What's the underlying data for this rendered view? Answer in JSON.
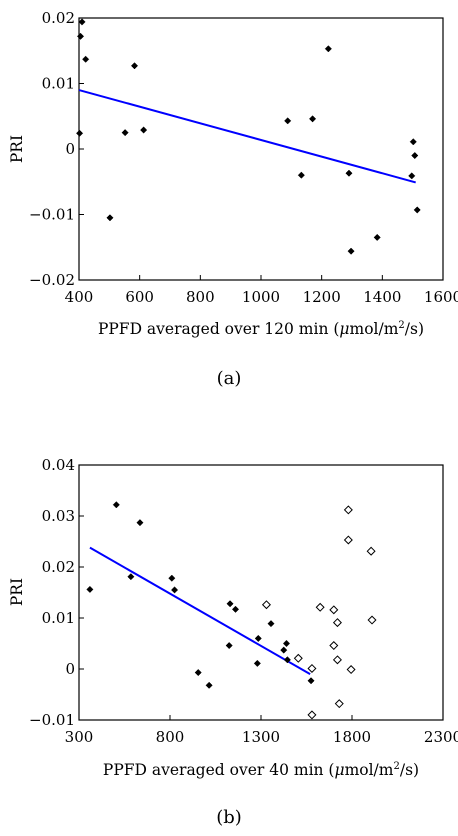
{
  "chart_data": [
    {
      "type": "scatter",
      "title": "",
      "caption": "(a)",
      "xlabel": "PPFD averaged over 120 min (μmol/m²/s)",
      "xlabel_parts": {
        "prefix": "PPFD averaged over 120 min (",
        "mu": "μ",
        "unit_mid": "mol/m",
        "sup": "2",
        "unit_end": "/s)"
      },
      "ylabel": "PRI",
      "xlim": [
        400,
        1600
      ],
      "ylim": [
        -0.02,
        0.02
      ],
      "xticks": [
        400,
        600,
        800,
        1000,
        1200,
        1400,
        1600
      ],
      "yticks": [
        -0.02,
        -0.01,
        0,
        0.01,
        0.02
      ],
      "xtick_labels": [
        "400",
        "600",
        "800",
        "1000",
        "1200",
        "1400",
        "1600"
      ],
      "ytick_labels": [
        "−0.02",
        "−0.01",
        "0",
        "0.01",
        "0.02"
      ],
      "grid": false,
      "series": [
        {
          "marker": "filled-diamond",
          "color": "#000000",
          "points": [
            [
              410,
              0.0194
            ],
            [
              405,
              0.0172
            ],
            [
              422,
              0.0137
            ],
            [
              402,
              0.0024
            ],
            [
              502,
              -0.0105
            ],
            [
              552,
              0.0025
            ],
            [
              583,
              0.0127
            ],
            [
              613,
              0.0029
            ],
            [
              1088,
              0.0043
            ],
            [
              1133,
              -0.004
            ],
            [
              1170,
              0.0046
            ],
            [
              1222,
              0.0153
            ],
            [
              1290,
              -0.0037
            ],
            [
              1297,
              -0.0156
            ],
            [
              1383,
              -0.0135
            ],
            [
              1497,
              -0.0041
            ],
            [
              1502,
              0.0011
            ],
            [
              1507,
              -0.001
            ],
            [
              1515,
              -0.0093
            ]
          ]
        }
      ],
      "fit_line": {
        "color": "#0000ff",
        "x": [
          400,
          1510
        ],
        "y": [
          0.009,
          -0.0051
        ]
      }
    },
    {
      "type": "scatter",
      "title": "",
      "caption": "(b)",
      "xlabel": "PPFD averaged over 40 min (μmol/m²/s)",
      "xlabel_parts": {
        "prefix": "PPFD averaged over 40 min (",
        "mu": "μ",
        "unit_mid": "mol/m",
        "sup": "2",
        "unit_end": "/s)"
      },
      "ylabel": "PRI",
      "xlim": [
        300,
        2300
      ],
      "ylim": [
        -0.01,
        0.04
      ],
      "xticks": [
        300,
        800,
        1300,
        1800,
        2300
      ],
      "yticks": [
        -0.01,
        0,
        0.01,
        0.02,
        0.03,
        0.04
      ],
      "xtick_labels": [
        "300",
        "800",
        "1300",
        "1800",
        "2300"
      ],
      "ytick_labels": [
        "−0.01",
        "0",
        "0.01",
        "0.02",
        "0.03",
        "0.04"
      ],
      "grid": false,
      "series": [
        {
          "marker": "filled-diamond",
          "color": "#000000",
          "points": [
            [
              360,
              0.0156
            ],
            [
              505,
              0.0322
            ],
            [
              585,
              0.0181
            ],
            [
              635,
              0.0287
            ],
            [
              810,
              0.0178
            ],
            [
              825,
              0.0155
            ],
            [
              955,
              -0.0007
            ],
            [
              1015,
              -0.0032
            ],
            [
              1125,
              0.0046
            ],
            [
              1130,
              0.0128
            ],
            [
              1160,
              0.0117
            ],
            [
              1280,
              0.0011
            ],
            [
              1285,
              0.006
            ],
            [
              1355,
              0.0089
            ],
            [
              1425,
              0.0037
            ],
            [
              1440,
              0.005
            ],
            [
              1445,
              0.0018
            ],
            [
              1575,
              -0.0023
            ]
          ]
        },
        {
          "marker": "open-diamond",
          "color": "#000000",
          "points": [
            [
              1330,
              0.0126
            ],
            [
              1505,
              0.0021
            ],
            [
              1580,
              0.0001
            ],
            [
              1580,
              -0.009
            ],
            [
              1625,
              0.0121
            ],
            [
              1700,
              0.0116
            ],
            [
              1700,
              0.0046
            ],
            [
              1720,
              0.0091
            ],
            [
              1720,
              0.0018
            ],
            [
              1730,
              -0.0068
            ],
            [
              1780,
              0.0312
            ],
            [
              1780,
              0.0253
            ],
            [
              1795,
              -0.0001
            ],
            [
              1905,
              0.0231
            ],
            [
              1910,
              0.0096
            ]
          ]
        }
      ],
      "fit_line": {
        "color": "#0000ff",
        "x": [
          360,
          1570
        ],
        "y": [
          0.0238,
          -0.001
        ]
      }
    }
  ]
}
